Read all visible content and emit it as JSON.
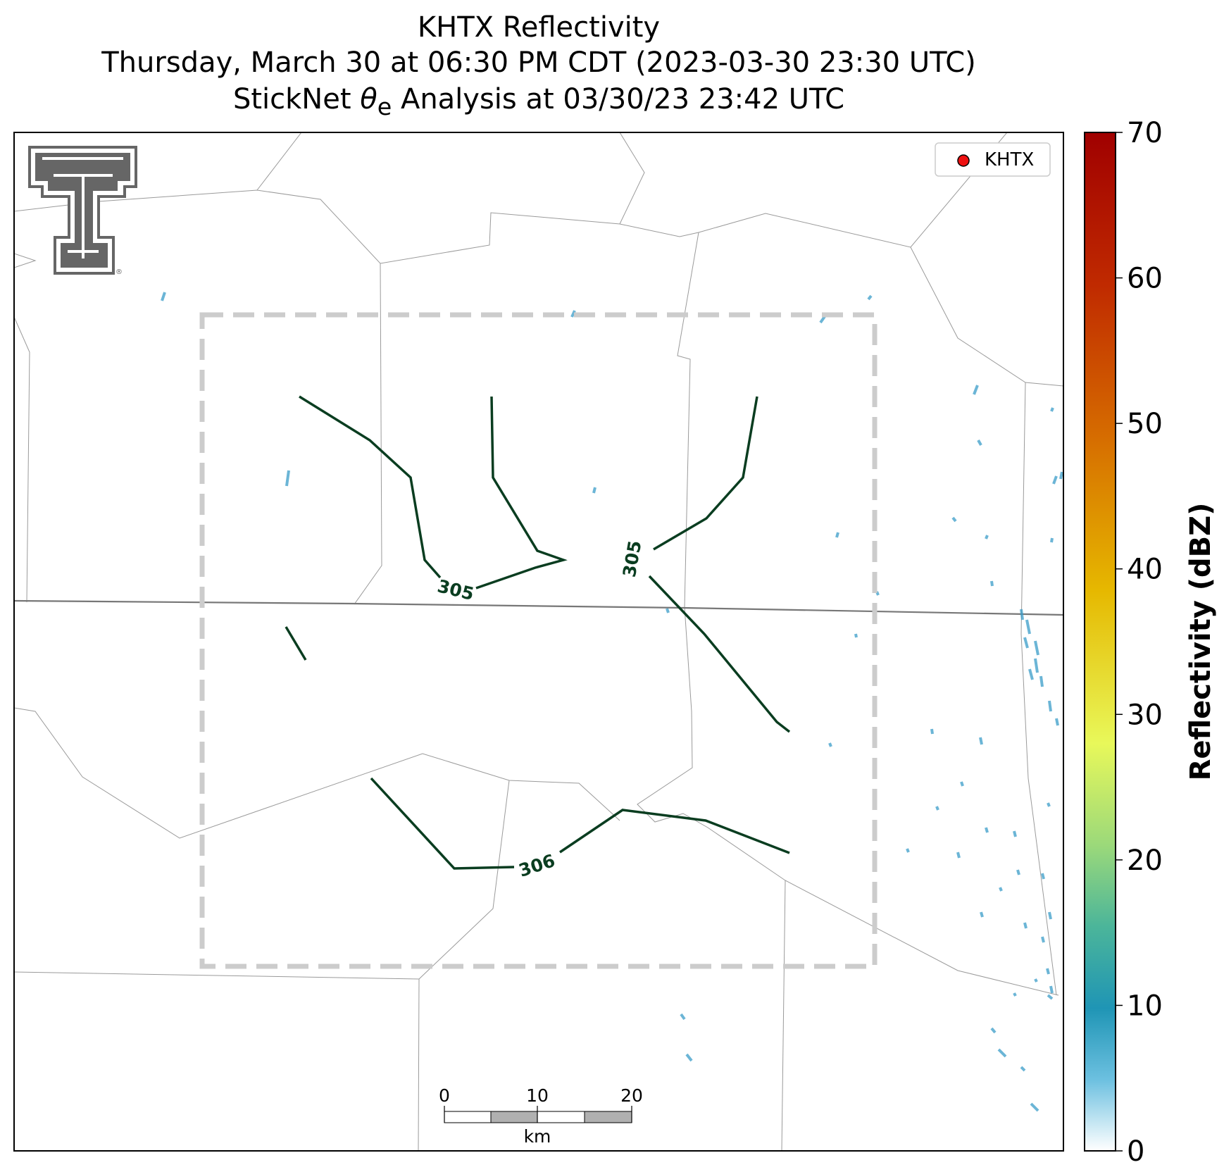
{
  "title": {
    "line1": "KHTX Reflectivity",
    "line2": "Thursday, March 30 at 06:30 PM CDT (2023-03-30 23:30 UTC)",
    "line3_prefix": "StickNet ",
    "line3_theta": "θ",
    "line3_sub": "e",
    "line3_suffix": " Analysis at 03/30/23 23:42 UTC"
  },
  "legend": {
    "label": "KHTX",
    "marker_color": "#ee1111"
  },
  "colorbar": {
    "label": "Reflectivity (dBZ)",
    "min": 0,
    "max": 70,
    "ticks": [
      "0",
      "10",
      "20",
      "30",
      "40",
      "50",
      "60",
      "70"
    ]
  },
  "contours": {
    "color": "#0a3d20",
    "labels": [
      "305",
      "305",
      "306"
    ]
  },
  "scale_bar": {
    "ticks": [
      "0",
      "10",
      "20"
    ],
    "unit": "km"
  },
  "colors": {
    "dashed_box": "#cccccc",
    "county_lines": "#9a9a9a",
    "state_line": "#777777",
    "radar_echo": "#3a9cc8",
    "logo": "#666666"
  }
}
